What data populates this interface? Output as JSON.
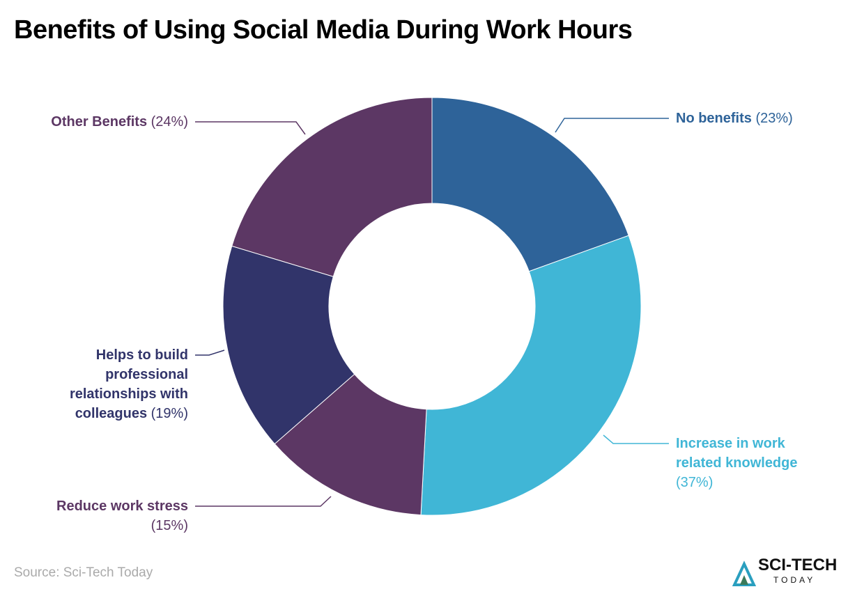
{
  "chart_data": {
    "type": "donut",
    "title": "Benefits of Using Social Media During Work Hours",
    "categories": [
      "No benefits",
      "Increase in work related knowledge",
      "Reduce work stress",
      "Helps to build professional relationships with colleagues",
      "Other Benefits"
    ],
    "values": [
      23,
      37,
      15,
      19,
      24
    ],
    "value_labels": [
      "(23%)",
      "(37%)",
      "(15%)",
      "(19%)",
      "(24%)"
    ],
    "colors": [
      "#2e6399",
      "#40b6d6",
      "#5c3764",
      "#31346a",
      "#5c3764"
    ],
    "source": "Source: Sci-Tech Today",
    "logo": [
      "SCI-TECH",
      "TODAY"
    ]
  }
}
